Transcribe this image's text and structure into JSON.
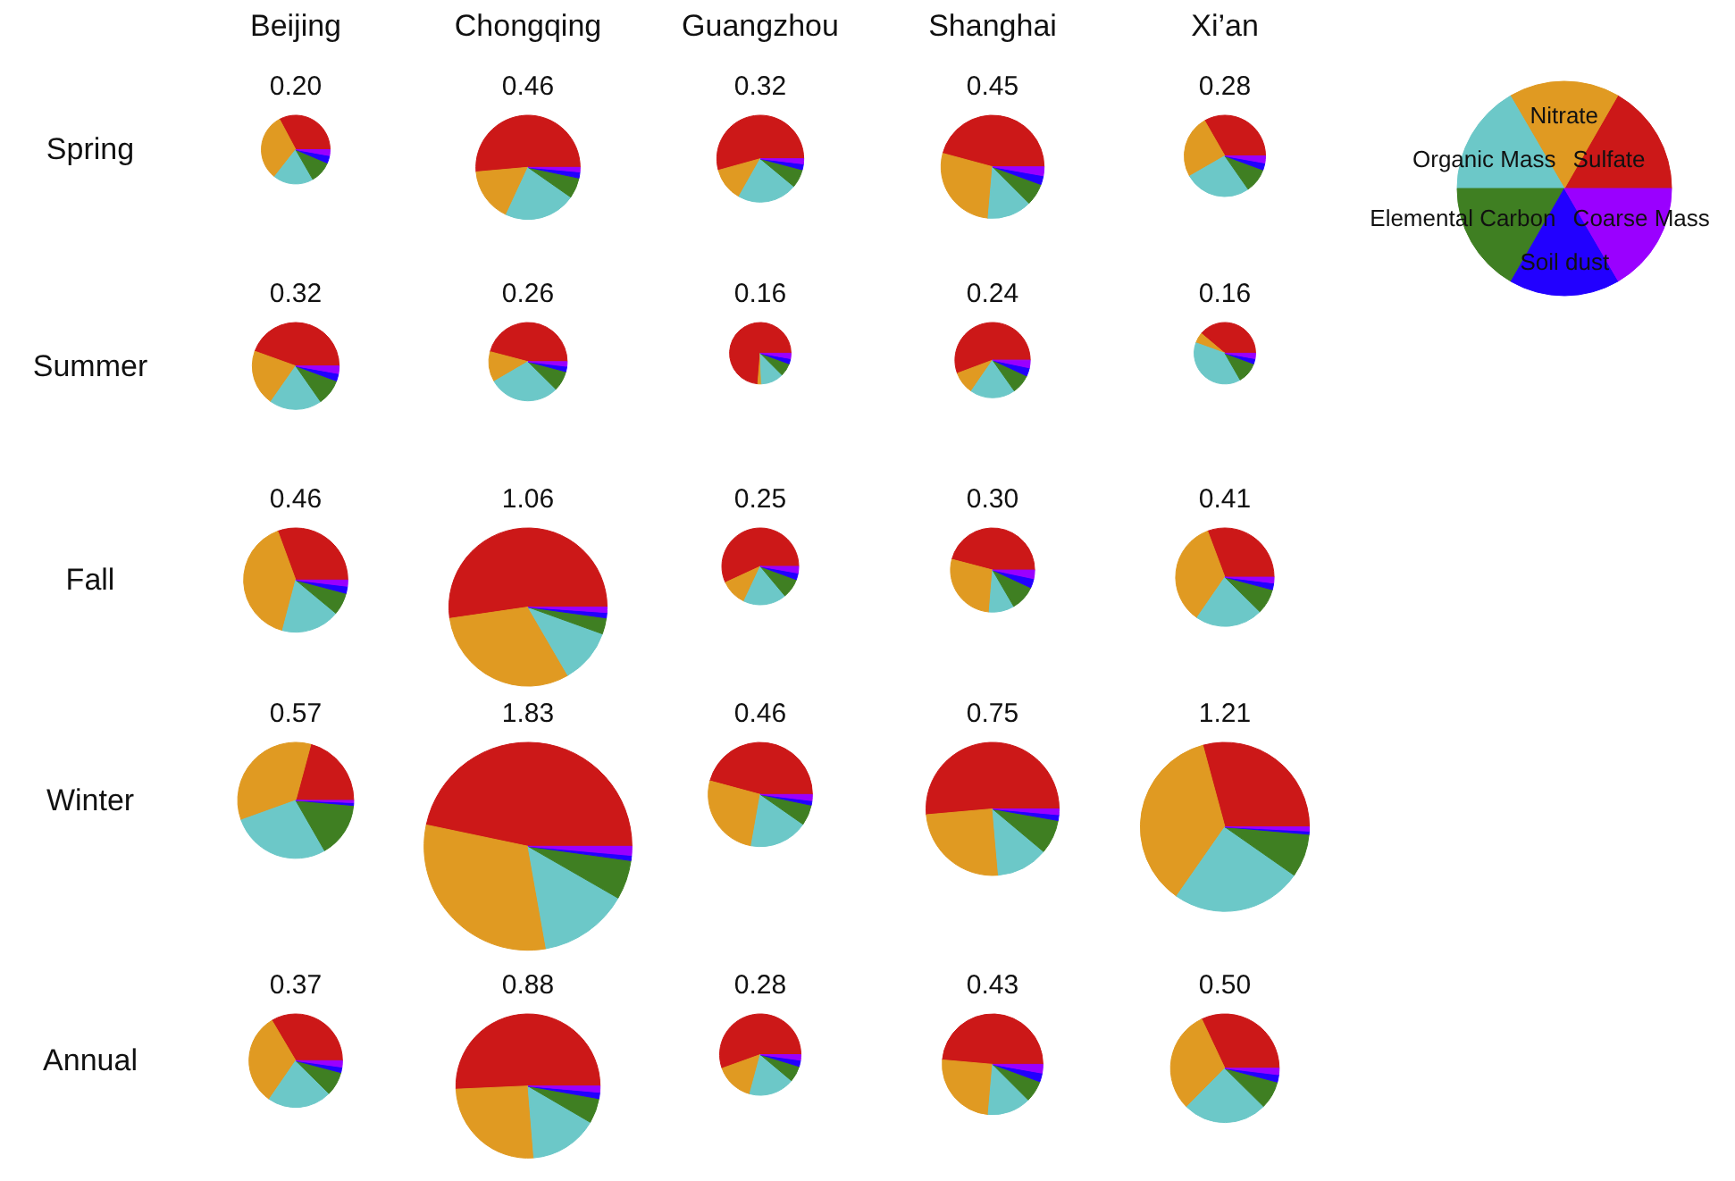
{
  "chart_data": [
    {
      "type": "pie",
      "title": "Beijing",
      "ylabel": "Spring",
      "subtitle": "0.20",
      "categories": [
        null,
        null,
        null,
        null,
        null,
        null
      ],
      "values": [
        32.8,
        31.6,
        18.9,
        10.3,
        3.6,
        2.8
      ],
      "colors": [
        "#cc1818",
        "#e09a22",
        "#6cc8c8",
        "#3f7f22",
        "#2200ff",
        "#9a00ff"
      ]
    },
    {
      "type": "pie",
      "title": "Chongqing",
      "subtitle": "0.46",
      "categories": [
        null,
        null,
        null,
        null,
        null,
        null
      ],
      "values": [
        51.4,
        16.7,
        22.2,
        6.4,
        1.9,
        1.4
      ],
      "colors": [
        "#cc1818",
        "#e09a22",
        "#6cc8c8",
        "#3f7f22",
        "#2200ff",
        "#9a00ff"
      ]
    },
    {
      "type": "pie",
      "title": "Guangzhou",
      "subtitle": "0.32",
      "categories": [
        null,
        null,
        null,
        null,
        null,
        null
      ],
      "values": [
        54.3,
        12.5,
        22.2,
        6.9,
        2.2,
        1.9
      ],
      "colors": [
        "#cc1818",
        "#e09a22",
        "#6cc8c8",
        "#3f7f22",
        "#2200ff",
        "#9a00ff"
      ]
    },
    {
      "type": "pie",
      "title": "Shanghai",
      "subtitle": "0.45",
      "categories": [
        null,
        null,
        null,
        null,
        null,
        null
      ],
      "values": [
        45.8,
        27.8,
        13.9,
        6.9,
        2.8,
        2.8
      ],
      "colors": [
        "#cc1818",
        "#e09a22",
        "#6cc8c8",
        "#3f7f22",
        "#2200ff",
        "#9a00ff"
      ]
    },
    {
      "type": "pie",
      "title": "Xi’an",
      "subtitle": "0.28",
      "categories": [
        null,
        null,
        null,
        null,
        null,
        null
      ],
      "values": [
        33.3,
        25.0,
        26.4,
        9.7,
        2.8,
        2.8
      ],
      "colors": [
        "#cc1818",
        "#e09a22",
        "#6cc8c8",
        "#3f7f22",
        "#2200ff",
        "#9a00ff"
      ]
    },
    {
      "type": "pie",
      "ylabel": "Summer",
      "subtitle": "0.32",
      "categories": [
        null,
        null,
        null,
        null,
        null,
        null
      ],
      "values": [
        44.5,
        20.8,
        19.4,
        9.7,
        2.8,
        2.8
      ],
      "colors": [
        "#cc1818",
        "#e09a22",
        "#6cc8c8",
        "#3f7f22",
        "#2200ff",
        "#9a00ff"
      ]
    },
    {
      "type": "pie",
      "subtitle": "0.26",
      "categories": [
        null,
        null,
        null,
        null,
        null,
        null
      ],
      "values": [
        45.9,
        12.5,
        29.2,
        8.3,
        2.2,
        1.9
      ],
      "colors": [
        "#cc1818",
        "#e09a22",
        "#6cc8c8",
        "#3f7f22",
        "#2200ff",
        "#9a00ff"
      ]
    },
    {
      "type": "pie",
      "subtitle": "0.16",
      "categories": [
        null,
        null,
        null,
        null,
        null,
        null
      ],
      "values": [
        73.7,
        1.9,
        11.9,
        6.9,
        2.8,
        2.8
      ],
      "colors": [
        "#cc1818",
        "#e09a22",
        "#6cc8c8",
        "#3f7f22",
        "#2200ff",
        "#9a00ff"
      ]
    },
    {
      "type": "pie",
      "subtitle": "0.24",
      "categories": [
        null,
        null,
        null,
        null,
        null,
        null
      ],
      "values": [
        55.7,
        9.7,
        19.4,
        8.3,
        3.6,
        3.3
      ],
      "colors": [
        "#cc1818",
        "#e09a22",
        "#6cc8c8",
        "#3f7f22",
        "#2200ff",
        "#9a00ff"
      ]
    },
    {
      "type": "pie",
      "subtitle": "0.16",
      "categories": [
        null,
        null,
        null,
        null,
        null,
        null
      ],
      "values": [
        38.9,
        5.6,
        38.8,
        11.1,
        2.8,
        2.8
      ],
      "colors": [
        "#cc1818",
        "#e09a22",
        "#6cc8c8",
        "#3f7f22",
        "#2200ff",
        "#9a00ff"
      ]
    },
    {
      "type": "pie",
      "ylabel": "Fall",
      "subtitle": "0.46",
      "categories": [
        null,
        null,
        null,
        null,
        null,
        null
      ],
      "values": [
        30.6,
        40.3,
        18.1,
        6.9,
        2.2,
        1.9
      ],
      "colors": [
        "#cc1818",
        "#e09a22",
        "#6cc8c8",
        "#3f7f22",
        "#2200ff",
        "#9a00ff"
      ]
    },
    {
      "type": "pie",
      "subtitle": "1.06",
      "categories": [
        null,
        null,
        null,
        null,
        null,
        null
      ],
      "values": [
        52.3,
        31.1,
        11.1,
        3.3,
        1.1,
        1.1
      ],
      "colors": [
        "#cc1818",
        "#e09a22",
        "#6cc8c8",
        "#3f7f22",
        "#2200ff",
        "#9a00ff"
      ]
    },
    {
      "type": "pie",
      "subtitle": "0.25",
      "categories": [
        null,
        null,
        null,
        null,
        null,
        null
      ],
      "values": [
        56.9,
        11.1,
        18.1,
        8.3,
        2.8,
        2.8
      ],
      "colors": [
        "#cc1818",
        "#e09a22",
        "#6cc8c8",
        "#3f7f22",
        "#2200ff",
        "#9a00ff"
      ]
    },
    {
      "type": "pie",
      "subtitle": "0.30",
      "categories": [
        null,
        null,
        null,
        null,
        null,
        null
      ],
      "values": [
        45.9,
        27.8,
        9.7,
        9.7,
        3.6,
        3.3
      ],
      "colors": [
        "#cc1818",
        "#e09a22",
        "#6cc8c8",
        "#3f7f22",
        "#2200ff",
        "#9a00ff"
      ]
    },
    {
      "type": "pie",
      "subtitle": "0.41",
      "categories": [
        null,
        null,
        null,
        null,
        null,
        null
      ],
      "values": [
        30.7,
        34.7,
        22.2,
        8.3,
        2.2,
        1.9
      ],
      "colors": [
        "#cc1818",
        "#e09a22",
        "#6cc8c8",
        "#3f7f22",
        "#2200ff",
        "#9a00ff"
      ]
    },
    {
      "type": "pie",
      "ylabel": "Winter",
      "subtitle": "0.57",
      "categories": [
        null,
        null,
        null,
        null,
        null,
        null
      ],
      "values": [
        20.8,
        34.7,
        27.8,
        15.3,
        0.8,
        0.6
      ],
      "colors": [
        "#cc1818",
        "#e09a22",
        "#6cc8c8",
        "#3f7f22",
        "#2200ff",
        "#9a00ff"
      ]
    },
    {
      "type": "pie",
      "subtitle": "1.83",
      "categories": [
        null,
        null,
        null,
        null,
        null,
        null
      ],
      "values": [
        46.7,
        31.1,
        13.9,
        6.1,
        0.8,
        1.4
      ],
      "colors": [
        "#cc1818",
        "#e09a22",
        "#6cc8c8",
        "#3f7f22",
        "#2200ff",
        "#9a00ff"
      ]
    },
    {
      "type": "pie",
      "subtitle": "0.46",
      "categories": [
        null,
        null,
        null,
        null,
        null,
        null
      ],
      "values": [
        45.8,
        26.4,
        18.1,
        6.4,
        1.4,
        1.9
      ],
      "colors": [
        "#cc1818",
        "#e09a22",
        "#6cc8c8",
        "#3f7f22",
        "#2200ff",
        "#9a00ff"
      ]
    },
    {
      "type": "pie",
      "subtitle": "0.75",
      "categories": [
        null,
        null,
        null,
        null,
        null,
        null
      ],
      "values": [
        51.4,
        25.0,
        12.5,
        8.3,
        1.4,
        1.4
      ],
      "colors": [
        "#cc1818",
        "#e09a22",
        "#6cc8c8",
        "#3f7f22",
        "#2200ff",
        "#9a00ff"
      ]
    },
    {
      "type": "pie",
      "subtitle": "1.21",
      "categories": [
        null,
        null,
        null,
        null,
        null,
        null
      ],
      "values": [
        29.2,
        36.1,
        25.0,
        8.3,
        0.6,
        0.8
      ],
      "colors": [
        "#cc1818",
        "#e09a22",
        "#6cc8c8",
        "#3f7f22",
        "#2200ff",
        "#9a00ff"
      ]
    },
    {
      "type": "pie",
      "ylabel": "Annual",
      "subtitle": "0.37",
      "categories": [
        null,
        null,
        null,
        null,
        null,
        null
      ],
      "values": [
        33.5,
        31.9,
        22.2,
        8.3,
        1.9,
        2.2
      ],
      "colors": [
        "#cc1818",
        "#e09a22",
        "#6cc8c8",
        "#3f7f22",
        "#2200ff",
        "#9a00ff"
      ]
    },
    {
      "type": "pie",
      "subtitle": "0.88",
      "categories": [
        null,
        null,
        null,
        null,
        null,
        null
      ],
      "values": [
        50.7,
        25.6,
        15.3,
        5.6,
        1.4,
        1.4
      ],
      "colors": [
        "#cc1818",
        "#e09a22",
        "#6cc8c8",
        "#3f7f22",
        "#2200ff",
        "#9a00ff"
      ]
    },
    {
      "type": "pie",
      "subtitle": "0.28",
      "categories": [
        null,
        null,
        null,
        null,
        null,
        null
      ],
      "values": [
        55.5,
        15.3,
        18.1,
        6.4,
        2.5,
        2.2
      ],
      "colors": [
        "#cc1818",
        "#e09a22",
        "#6cc8c8",
        "#3f7f22",
        "#2200ff",
        "#9a00ff"
      ]
    },
    {
      "type": "pie",
      "subtitle": "0.43",
      "categories": [
        null,
        null,
        null,
        null,
        null,
        null
      ],
      "values": [
        48.6,
        25.0,
        13.9,
        6.9,
        2.8,
        2.8
      ],
      "colors": [
        "#cc1818",
        "#e09a22",
        "#6cc8c8",
        "#3f7f22",
        "#2200ff",
        "#9a00ff"
      ]
    },
    {
      "type": "pie",
      "subtitle": "0.50",
      "categories": [
        null,
        null,
        null,
        null,
        null,
        null
      ],
      "values": [
        32.0,
        30.6,
        25.0,
        8.3,
        2.2,
        1.9
      ],
      "colors": [
        "#cc1818",
        "#e09a22",
        "#6cc8c8",
        "#3f7f22",
        "#2200ff",
        "#9a00ff"
      ]
    },
    {
      "type": "pie",
      "categories": [
        "Sulfate",
        "Nitrate",
        "Organic Mass",
        "Elemental Carbon",
        "Soil dust",
        "Coarse Mass"
      ],
      "values": [
        16.7,
        16.7,
        16.6,
        16.7,
        16.7,
        16.6
      ],
      "colors": [
        "#cc1818",
        "#e09a22",
        "#6cc8c8",
        "#3f7f22",
        "#2200ff",
        "#9a00ff"
      ]
    }
  ]
}
